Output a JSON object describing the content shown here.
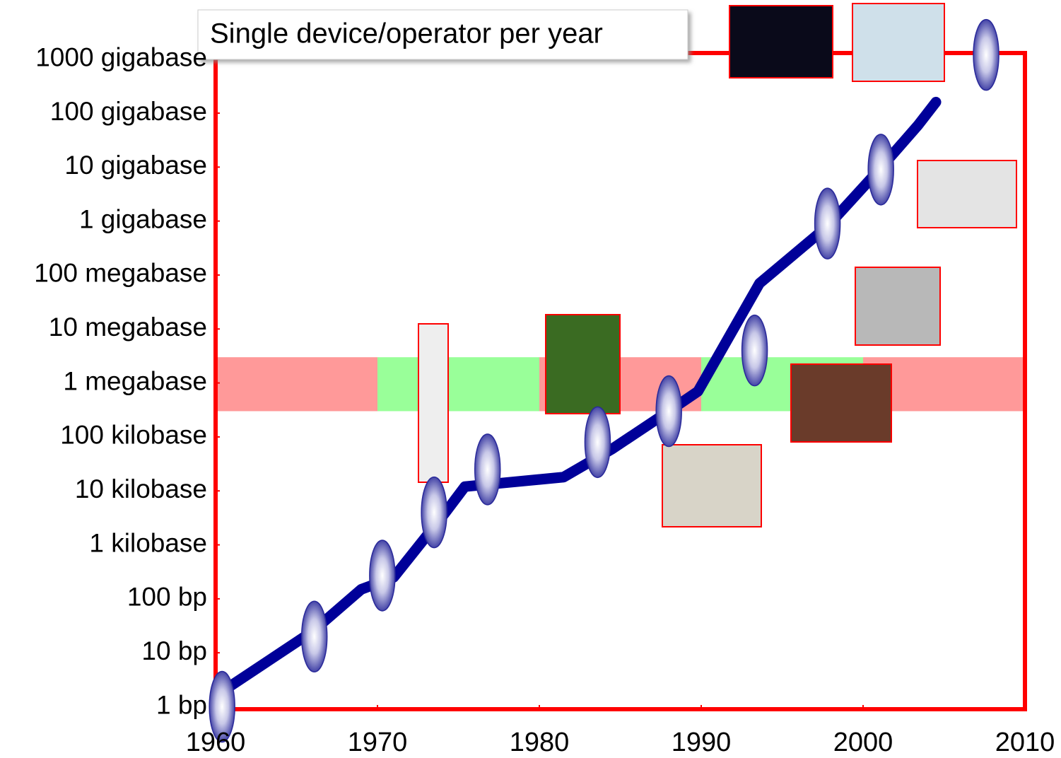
{
  "chart_data": {
    "type": "line",
    "title": "Single device/operator per year",
    "log_scale": true,
    "xlim": [
      1960,
      2010
    ],
    "xticks": [
      1960,
      1970,
      1980,
      1990,
      2000,
      2010
    ],
    "ylim": [
      0.9,
      1300000000000
    ],
    "yticks": [
      {
        "value": 1,
        "label": "1 bp"
      },
      {
        "value": 10,
        "label": "10 bp"
      },
      {
        "value": 100,
        "label": "100 bp"
      },
      {
        "value": 1000,
        "label": "1 kilobase"
      },
      {
        "value": 10000,
        "label": "10 kilobase"
      },
      {
        "value": 100000,
        "label": "100 kilobase"
      },
      {
        "value": 1000000,
        "label": "1 megabase"
      },
      {
        "value": 10000000,
        "label": "10 megabase"
      },
      {
        "value": 100000000,
        "label": "100 megabase"
      },
      {
        "value": 1000000000,
        "label": "1 gigabase"
      },
      {
        "value": 10000000000,
        "label": "10 gigabase"
      },
      {
        "value": 100000000000,
        "label": "100 gigabase"
      },
      {
        "value": 1000000000000,
        "label": "1000 gigabase"
      }
    ],
    "frame_color": "#ff0000",
    "x": [
      1960.5,
      1966,
      1969,
      1971,
      1974.2,
      1975.4,
      1981.5,
      1984.5,
      1988,
      1989.8,
      1993.6,
      1997.8,
      2001,
      2003.4,
      2004.5
    ],
    "values": [
      2,
      25,
      150,
      250,
      4000,
      12000,
      18000,
      60000,
      300000,
      700000,
      70000000,
      800000000,
      9000000000,
      60000000000,
      160000000000
    ],
    "color": "#000099",
    "markers": {
      "x": [
        1960.4,
        1966.1,
        1970.3,
        1973.5,
        1976.8,
        1983.6,
        1988,
        1993.3,
        1997.8,
        2001.1,
        2007.6
      ],
      "values": [
        1,
        20,
        270,
        4000,
        25000,
        80000,
        300000,
        4000000,
        900000000,
        9000000000,
        1200000000000
      ]
    },
    "band_ylim": [
      300000,
      3000000
    ],
    "bands": [
      {
        "x": [
          1960,
          1970
        ],
        "color": "#ff9999"
      },
      {
        "x": [
          1970,
          1980
        ],
        "color": "#99ff99"
      },
      {
        "x": [
          1980,
          1990
        ],
        "color": "#ff9999"
      },
      {
        "x": [
          1990,
          2000
        ],
        "color": "#99ff99"
      },
      {
        "x": [
          2000,
          2010
        ],
        "color": "#ff9999"
      }
    ]
  }
}
